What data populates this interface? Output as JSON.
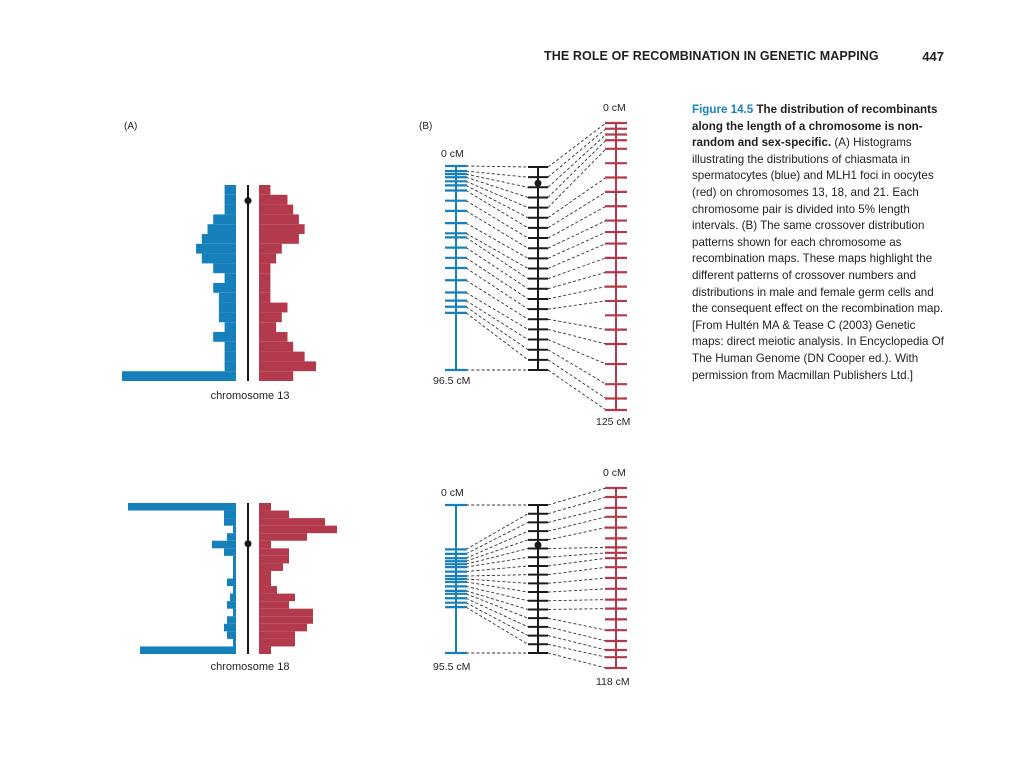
{
  "header": {
    "title": "THE ROLE OF RECOMBINATION IN GENETIC MAPPING",
    "page_number": "447"
  },
  "figure": {
    "panel_a_label": "(A)",
    "panel_b_label": "(B)",
    "colors": {
      "male": "#1580b9",
      "female": "#b23a4c",
      "axis": "#1a1a1a"
    },
    "chromosome_13": {
      "label": "chromosome 13",
      "male_map_top": "0 cM",
      "male_map_bottom": "96.5 cM",
      "female_map_top": "0 cM",
      "female_map_bottom": "125 cM",
      "male_histogram": [
        0.2,
        0.2,
        0.2,
        0.4,
        0.5,
        0.6,
        0.7,
        0.6,
        0.4,
        0.2,
        0.4,
        0.3,
        0.3,
        0.3,
        0.2,
        0.4,
        0.2,
        0.2,
        0.2,
        2.0
      ],
      "female_histogram": [
        0.2,
        0.5,
        0.6,
        0.7,
        0.8,
        0.7,
        0.4,
        0.3,
        0.2,
        0.2,
        0.2,
        0.2,
        0.5,
        0.4,
        0.3,
        0.5,
        0.6,
        0.8,
        1.0,
        0.6
      ],
      "male_map_ticks": [
        0,
        0.025,
        0.04,
        0.055,
        0.075,
        0.095,
        0.12,
        0.17,
        0.22,
        0.28,
        0.33,
        0.35,
        0.4,
        0.45,
        0.5,
        0.56,
        0.62,
        0.66,
        0.69,
        0.72,
        1.0
      ],
      "female_map_ticks": [
        0,
        0.02,
        0.04,
        0.06,
        0.09,
        0.14,
        0.19,
        0.24,
        0.29,
        0.34,
        0.38,
        0.42,
        0.47,
        0.52,
        0.57,
        0.62,
        0.67,
        0.72,
        0.77,
        0.84,
        0.91,
        0.96,
        1.0
      ],
      "centromere_fraction": 0.08
    },
    "chromosome_18": {
      "label": "chromosome 18",
      "male_map_top": "0 cM",
      "male_map_bottom": "95.5 cM",
      "female_map_top": "0 cM",
      "female_map_bottom": "118 cM",
      "male_histogram": [
        1.8,
        0.2,
        0.2,
        0.05,
        0.15,
        0.4,
        0.2,
        0.05,
        0.05,
        0.05,
        0.15,
        0.05,
        0.1,
        0.15,
        0.05,
        0.15,
        0.2,
        0.15,
        0.05,
        1.6
      ],
      "female_histogram": [
        0.2,
        0.5,
        1.1,
        1.3,
        0.8,
        0.2,
        0.5,
        0.5,
        0.4,
        0.2,
        0.2,
        0.3,
        0.6,
        0.5,
        0.9,
        0.9,
        0.8,
        0.6,
        0.6,
        0.2
      ],
      "male_map_ticks": [
        0,
        0.3,
        0.33,
        0.36,
        0.38,
        0.4,
        0.42,
        0.45,
        0.48,
        0.5,
        0.52,
        0.55,
        0.58,
        0.6,
        0.63,
        0.66,
        0.69,
        1.0
      ],
      "female_map_ticks": [
        0,
        0.05,
        0.11,
        0.16,
        0.22,
        0.28,
        0.33,
        0.36,
        0.39,
        0.44,
        0.5,
        0.56,
        0.62,
        0.67,
        0.73,
        0.79,
        0.85,
        0.9,
        0.94,
        1.0
      ],
      "centromere_fraction": 0.27
    }
  },
  "caption": {
    "number": "Figure 14.5",
    "title": "The distribution of recombinants along the length of a chromosome is non-random and sex-specific.",
    "body": "(A) Histograms illustrating the distributions of chiasmata in spermatocytes (blue) and MLH1 foci in oocytes (red) on chromosomes 13, 18, and 21. Each chromosome pair is divided into 5% length intervals. (B) The same crossover distribution patterns shown for each chromosome as recombination maps. These maps highlight the different patterns of crossover numbers and distributions in male and female germ cells and the consequent effect on the recombination map. [From Hultén MA & Tease C (2003) Genetic maps: direct meiotic analysis. In Encyclopedia Of The Human Genome (DN Cooper ed.). With permission from Macmillan Publishers Ltd.]"
  }
}
